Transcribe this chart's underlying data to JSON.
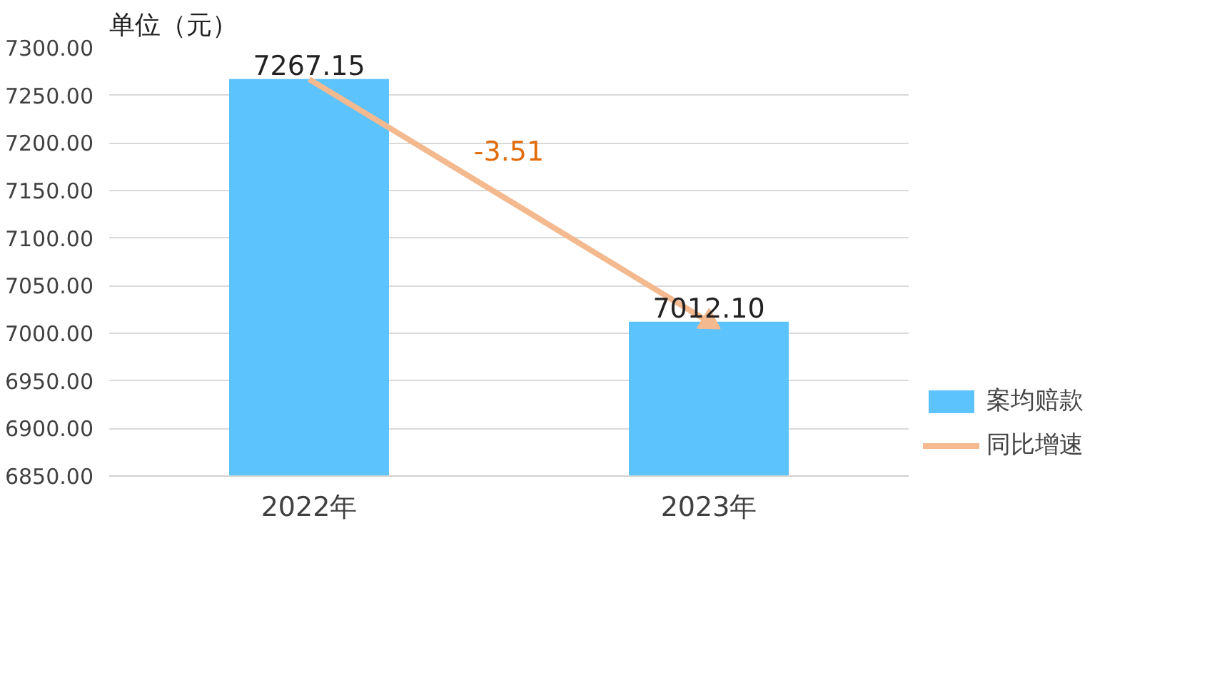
{
  "chart_data": {
    "type": "bar",
    "ylabel": "单位（元）",
    "categories": [
      "2022年",
      "2023年"
    ],
    "series": [
      {
        "name": "案均赔款",
        "color": "#5cc3fd",
        "values": [
          7267.15,
          7012.1
        ],
        "value_labels": [
          "7267.15",
          "7012.10"
        ]
      },
      {
        "name": "同比增速",
        "type": "line",
        "color": "#f4b98f",
        "values": [
          7267.15,
          7012.1
        ]
      }
    ],
    "annotations": [
      "-3.51"
    ],
    "ylim": [
      6850,
      7300
    ],
    "yticks": [
      {
        "value": 6850,
        "label": "6850.00"
      },
      {
        "value": 6900,
        "label": "6900.00"
      },
      {
        "value": 6950,
        "label": "6950.00"
      },
      {
        "value": 7000,
        "label": "7000.00"
      },
      {
        "value": 7050,
        "label": "7050.00"
      },
      {
        "value": 7100,
        "label": "7100.00"
      },
      {
        "value": 7150,
        "label": "7150.00"
      },
      {
        "value": 7200,
        "label": "7200.00"
      },
      {
        "value": 7250,
        "label": "7250.00"
      },
      {
        "value": 7300,
        "label": "7300.00"
      }
    ],
    "grid": "y",
    "legend": "bottom right"
  }
}
